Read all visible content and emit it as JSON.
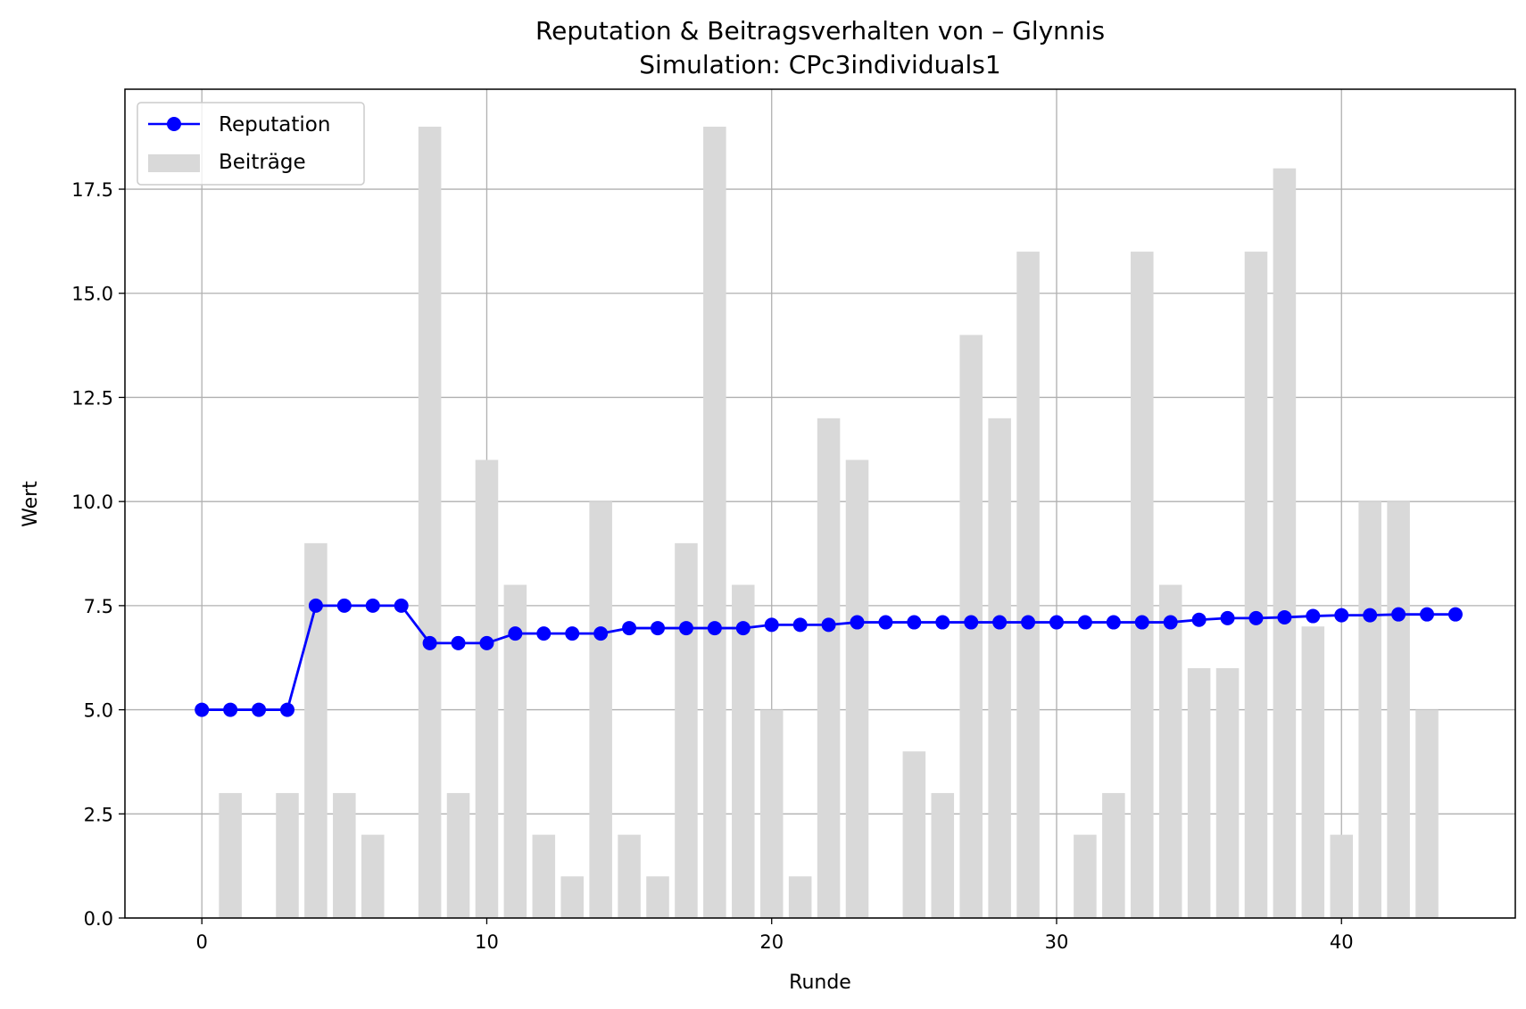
{
  "chart_data": {
    "type": "bar+line",
    "title": "Reputation & Beitragsverhalten von – Glynnis",
    "subtitle": "Simulation: CPc3individuals1",
    "xlabel": "Runde",
    "ylabel": "Wert",
    "xlim": [
      -2.7,
      46.1
    ],
    "ylim": [
      0,
      19.9
    ],
    "xticks": [
      0,
      10,
      20,
      30,
      40
    ],
    "yticks": [
      0.0,
      2.5,
      5.0,
      7.5,
      10.0,
      12.5,
      15.0,
      17.5
    ],
    "grid": true,
    "legend_position": "top-left",
    "x": [
      0,
      1,
      2,
      3,
      4,
      5,
      6,
      7,
      8,
      9,
      10,
      11,
      12,
      13,
      14,
      15,
      16,
      17,
      18,
      19,
      20,
      21,
      22,
      23,
      24,
      25,
      26,
      27,
      28,
      29,
      30,
      31,
      32,
      33,
      34,
      35,
      36,
      37,
      38,
      39,
      40,
      41,
      42,
      43,
      44
    ],
    "series": [
      {
        "name": "Beiträge",
        "kind": "bar",
        "color": "#d9d9d9",
        "values": [
          0,
          3,
          0,
          3,
          9,
          3,
          2,
          0,
          19,
          3,
          11,
          8,
          2,
          1,
          10,
          2,
          1,
          9,
          19,
          8,
          5,
          1,
          12,
          11,
          0,
          4,
          3,
          14,
          12,
          16,
          0,
          2,
          3,
          16,
          8,
          6,
          6,
          16,
          18,
          7,
          2,
          10,
          10,
          5,
          0
        ]
      },
      {
        "name": "Reputation",
        "kind": "line",
        "color": "#0000ff",
        "values": [
          5.0,
          5.0,
          5.0,
          5.0,
          7.5,
          7.5,
          7.5,
          7.5,
          6.6,
          6.6,
          6.6,
          6.83,
          6.83,
          6.83,
          6.83,
          6.96,
          6.96,
          6.96,
          6.96,
          6.96,
          7.04,
          7.04,
          7.04,
          7.1,
          7.1,
          7.1,
          7.1,
          7.1,
          7.1,
          7.1,
          7.1,
          7.1,
          7.1,
          7.1,
          7.1,
          7.16,
          7.2,
          7.2,
          7.22,
          7.25,
          7.27,
          7.27,
          7.29,
          7.29,
          7.29
        ]
      }
    ]
  }
}
